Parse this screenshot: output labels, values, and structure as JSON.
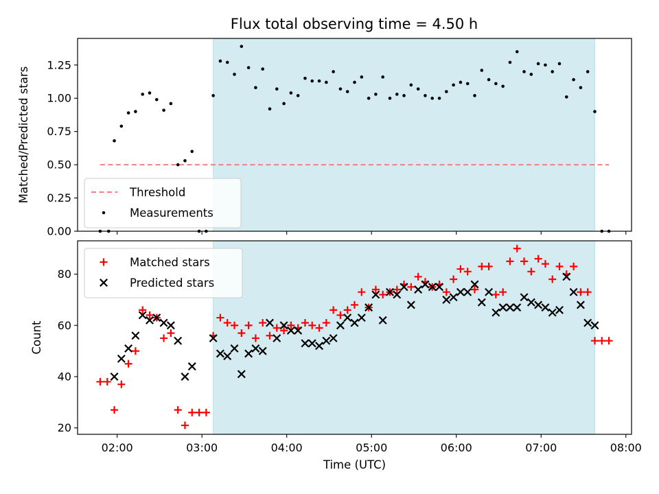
{
  "chart_data": [
    {
      "type": "scatter",
      "title": "Flux total observing time = 4.50 h",
      "xlabel": "",
      "ylabel": "Matched/Predicted stars",
      "xlim": [
        "01:32",
        "08:04"
      ],
      "ylim": [
        0,
        1.45
      ],
      "yticks": [
        "0.00",
        "0.25",
        "0.50",
        "0.75",
        "1.00",
        "1.25"
      ],
      "grid": false,
      "legend_placement": "lower-left",
      "highlight_span": {
        "start": "03:08",
        "end": "07:38",
        "color": "#d3ebf1"
      },
      "threshold": {
        "name": "Threshold",
        "value": 0.5,
        "x_start": "01:48",
        "x_end": "07:48",
        "color": "#f08080",
        "style": "dashed"
      },
      "series": [
        {
          "name": "Measurements",
          "color": "#000000",
          "marker": "dot",
          "points": [
            [
              "01:48",
              0.0
            ],
            [
              "01:54",
              0.0
            ],
            [
              "01:58",
              0.68
            ],
            [
              "02:03",
              0.79
            ],
            [
              "02:08",
              0.89
            ],
            [
              "02:13",
              0.9
            ],
            [
              "02:18",
              1.03
            ],
            [
              "02:23",
              1.04
            ],
            [
              "02:28",
              0.99
            ],
            [
              "02:33",
              0.91
            ],
            [
              "02:38",
              0.96
            ],
            [
              "02:43",
              0.5
            ],
            [
              "02:48",
              0.53
            ],
            [
              "02:53",
              0.6
            ],
            [
              "02:58",
              0.0
            ],
            [
              "03:03",
              0.0
            ],
            [
              "03:08",
              1.02
            ],
            [
              "03:13",
              1.28
            ],
            [
              "03:18",
              1.27
            ],
            [
              "03:23",
              1.18
            ],
            [
              "03:28",
              1.39
            ],
            [
              "03:33",
              1.23
            ],
            [
              "03:38",
              1.08
            ],
            [
              "03:43",
              1.22
            ],
            [
              "03:48",
              0.92
            ],
            [
              "03:53",
              1.07
            ],
            [
              "03:58",
              0.96
            ],
            [
              "04:03",
              1.04
            ],
            [
              "04:08",
              1.02
            ],
            [
              "04:13",
              1.15
            ],
            [
              "04:18",
              1.13
            ],
            [
              "04:23",
              1.13
            ],
            [
              "04:28",
              1.12
            ],
            [
              "04:33",
              1.2
            ],
            [
              "04:38",
              1.07
            ],
            [
              "04:43",
              1.05
            ],
            [
              "04:48",
              1.12
            ],
            [
              "04:53",
              1.16
            ],
            [
              "04:58",
              1.0
            ],
            [
              "05:03",
              1.03
            ],
            [
              "05:08",
              1.16
            ],
            [
              "05:13",
              1.0
            ],
            [
              "05:18",
              1.03
            ],
            [
              "05:23",
              1.02
            ],
            [
              "05:28",
              1.1
            ],
            [
              "05:33",
              1.07
            ],
            [
              "05:38",
              1.02
            ],
            [
              "05:43",
              1.0
            ],
            [
              "05:48",
              1.0
            ],
            [
              "05:53",
              1.05
            ],
            [
              "05:58",
              1.1
            ],
            [
              "06:03",
              1.12
            ],
            [
              "06:08",
              1.11
            ],
            [
              "06:13",
              1.02
            ],
            [
              "06:18",
              1.21
            ],
            [
              "06:23",
              1.14
            ],
            [
              "06:28",
              1.11
            ],
            [
              "06:33",
              1.09
            ],
            [
              "06:38",
              1.27
            ],
            [
              "06:43",
              1.35
            ],
            [
              "06:48",
              1.2
            ],
            [
              "06:53",
              1.18
            ],
            [
              "06:58",
              1.26
            ],
            [
              "07:03",
              1.25
            ],
            [
              "07:08",
              1.2
            ],
            [
              "07:13",
              1.26
            ],
            [
              "07:18",
              1.01
            ],
            [
              "07:23",
              1.14
            ],
            [
              "07:28",
              1.08
            ],
            [
              "07:33",
              1.2
            ],
            [
              "07:38",
              0.9
            ],
            [
              "07:43",
              0.0
            ],
            [
              "07:48",
              0.0
            ]
          ]
        }
      ]
    },
    {
      "type": "scatter",
      "title": "",
      "xlabel": "Time (UTC)",
      "ylabel": "Count",
      "xlim": [
        "01:32",
        "08:04"
      ],
      "ylim": [
        17.5,
        93
      ],
      "yticks": [
        "20",
        "40",
        "60",
        "80"
      ],
      "xticks": [
        "02:00",
        "03:00",
        "04:00",
        "05:00",
        "06:00",
        "07:00",
        "08:00"
      ],
      "grid": false,
      "legend_placement": "top-left",
      "highlight_span": {
        "start": "03:08",
        "end": "07:38",
        "color": "#d3ebf1"
      },
      "series": [
        {
          "name": "Matched stars",
          "color": "#ff0000",
          "marker": "plus",
          "points": [
            [
              "01:48",
              38
            ],
            [
              "01:53",
              38
            ],
            [
              "01:58",
              27
            ],
            [
              "02:03",
              37
            ],
            [
              "02:08",
              45
            ],
            [
              "02:13",
              50
            ],
            [
              "02:18",
              66
            ],
            [
              "02:23",
              64
            ],
            [
              "02:28",
              63
            ],
            [
              "02:33",
              55
            ],
            [
              "02:38",
              57
            ],
            [
              "02:43",
              27
            ],
            [
              "02:48",
              21
            ],
            [
              "02:53",
              26
            ],
            [
              "02:58",
              26
            ],
            [
              "03:03",
              26
            ],
            [
              "03:08",
              56
            ],
            [
              "03:13",
              63
            ],
            [
              "03:18",
              61
            ],
            [
              "03:23",
              60
            ],
            [
              "03:28",
              57
            ],
            [
              "03:33",
              60
            ],
            [
              "03:38",
              55
            ],
            [
              "03:43",
              61
            ],
            [
              "03:48",
              56
            ],
            [
              "03:53",
              59
            ],
            [
              "03:58",
              58
            ],
            [
              "04:03",
              60
            ],
            [
              "04:08",
              59
            ],
            [
              "04:13",
              61
            ],
            [
              "04:18",
              60
            ],
            [
              "04:23",
              59
            ],
            [
              "04:28",
              61
            ],
            [
              "04:33",
              66
            ],
            [
              "04:38",
              64
            ],
            [
              "04:43",
              66
            ],
            [
              "04:48",
              68
            ],
            [
              "04:53",
              73
            ],
            [
              "04:58",
              67
            ],
            [
              "05:03",
              74
            ],
            [
              "05:08",
              72
            ],
            [
              "05:13",
              73
            ],
            [
              "05:18",
              74
            ],
            [
              "05:23",
              76
            ],
            [
              "05:28",
              75
            ],
            [
              "05:33",
              79
            ],
            [
              "05:38",
              77
            ],
            [
              "05:43",
              75
            ],
            [
              "05:48",
              76
            ],
            [
              "05:53",
              73
            ],
            [
              "05:58",
              78
            ],
            [
              "06:03",
              82
            ],
            [
              "06:08",
              81
            ],
            [
              "06:13",
              74
            ],
            [
              "06:18",
              83
            ],
            [
              "06:23",
              83
            ],
            [
              "06:28",
              72
            ],
            [
              "06:33",
              73
            ],
            [
              "06:38",
              85
            ],
            [
              "06:43",
              90
            ],
            [
              "06:48",
              85
            ],
            [
              "06:53",
              81
            ],
            [
              "06:58",
              86
            ],
            [
              "07:03",
              84
            ],
            [
              "07:08",
              78
            ],
            [
              "07:13",
              83
            ],
            [
              "07:18",
              80
            ],
            [
              "07:23",
              83
            ],
            [
              "07:28",
              73
            ],
            [
              "07:33",
              73
            ],
            [
              "07:38",
              54
            ],
            [
              "07:43",
              54
            ],
            [
              "07:48",
              54
            ]
          ]
        },
        {
          "name": "Predicted stars",
          "color": "#000000",
          "marker": "x",
          "points": [
            [
              "01:58",
              40
            ],
            [
              "02:03",
              47
            ],
            [
              "02:08",
              51
            ],
            [
              "02:13",
              56
            ],
            [
              "02:18",
              64
            ],
            [
              "02:23",
              62
            ],
            [
              "02:28",
              63
            ],
            [
              "02:33",
              61
            ],
            [
              "02:38",
              60
            ],
            [
              "02:43",
              54
            ],
            [
              "02:48",
              40
            ],
            [
              "02:53",
              44
            ],
            [
              "03:08",
              55
            ],
            [
              "03:13",
              49
            ],
            [
              "03:18",
              48
            ],
            [
              "03:23",
              51
            ],
            [
              "03:28",
              41
            ],
            [
              "03:33",
              49
            ],
            [
              "03:38",
              51
            ],
            [
              "03:43",
              50
            ],
            [
              "03:48",
              61
            ],
            [
              "03:53",
              55
            ],
            [
              "03:58",
              60
            ],
            [
              "04:03",
              58
            ],
            [
              "04:08",
              58
            ],
            [
              "04:13",
              53
            ],
            [
              "04:18",
              53
            ],
            [
              "04:23",
              52
            ],
            [
              "04:28",
              54
            ],
            [
              "04:33",
              55
            ],
            [
              "04:38",
              60
            ],
            [
              "04:43",
              63
            ],
            [
              "04:48",
              61
            ],
            [
              "04:53",
              63
            ],
            [
              "04:58",
              67
            ],
            [
              "05:03",
              72
            ],
            [
              "05:08",
              62
            ],
            [
              "05:13",
              73
            ],
            [
              "05:18",
              72
            ],
            [
              "05:23",
              75
            ],
            [
              "05:28",
              68
            ],
            [
              "05:33",
              74
            ],
            [
              "05:38",
              76
            ],
            [
              "05:43",
              75
            ],
            [
              "05:48",
              75
            ],
            [
              "05:53",
              70
            ],
            [
              "05:58",
              71
            ],
            [
              "06:03",
              73
            ],
            [
              "06:08",
              73
            ],
            [
              "06:13",
              76
            ],
            [
              "06:18",
              69
            ],
            [
              "06:23",
              73
            ],
            [
              "06:28",
              65
            ],
            [
              "06:33",
              67
            ],
            [
              "06:38",
              67
            ],
            [
              "06:43",
              67
            ],
            [
              "06:48",
              71
            ],
            [
              "06:53",
              69
            ],
            [
              "06:58",
              68
            ],
            [
              "07:03",
              67
            ],
            [
              "07:08",
              65
            ],
            [
              "07:13",
              66
            ],
            [
              "07:18",
              79
            ],
            [
              "07:23",
              73
            ],
            [
              "07:28",
              68
            ],
            [
              "07:33",
              61
            ],
            [
              "07:38",
              60
            ]
          ]
        }
      ]
    }
  ]
}
